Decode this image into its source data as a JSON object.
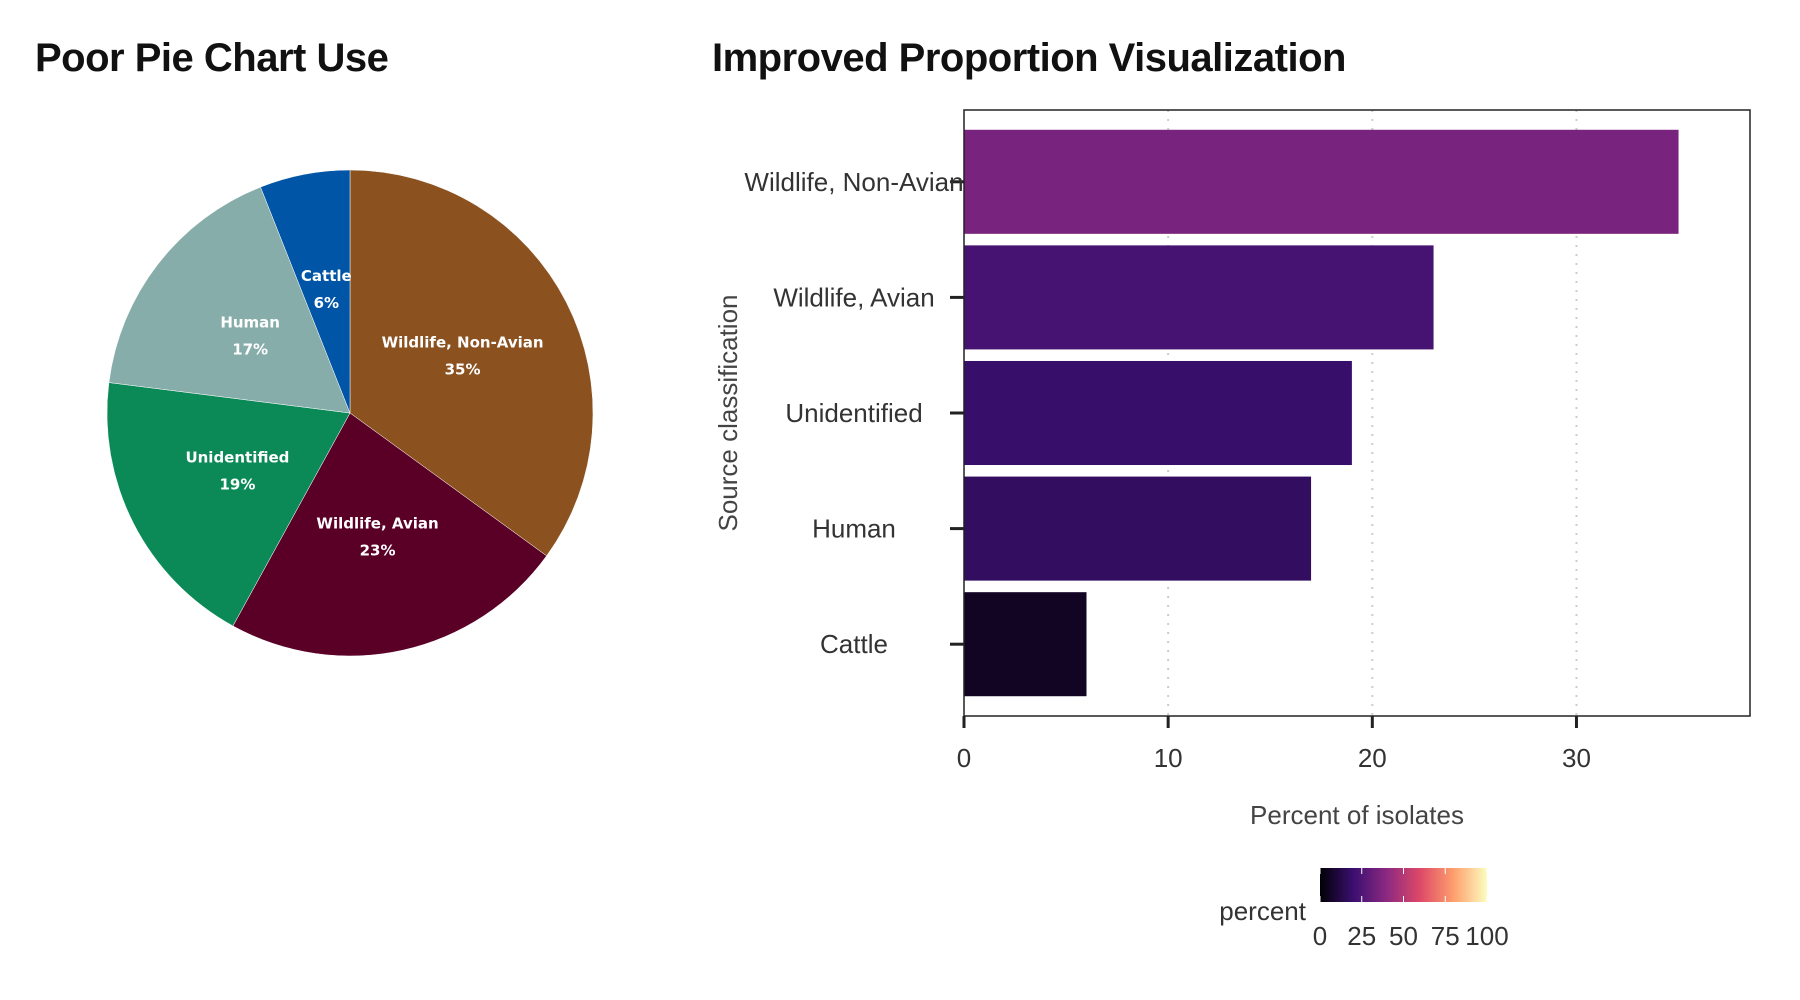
{
  "chart_data": [
    {
      "type": "pie",
      "title": "Poor Pie Chart Use",
      "start_angle_deg": 0,
      "direction": "clockwise",
      "slices": [
        {
          "label": "Wildlife, Non-Avian",
          "value": 35,
          "pct_label": "35%",
          "color": "#8B511F"
        },
        {
          "label": "Wildlife, Avian",
          "value": 23,
          "pct_label": "23%",
          "color": "#5A0027"
        },
        {
          "label": "Unidentified",
          "value": 19,
          "pct_label": "19%",
          "color": "#0B8A57"
        },
        {
          "label": "Human",
          "value": 17,
          "pct_label": "17%",
          "color": "#87ADAA"
        },
        {
          "label": "Cattle",
          "value": 6,
          "pct_label": "6%",
          "color": "#0055A6"
        }
      ]
    },
    {
      "type": "bar",
      "orientation": "horizontal",
      "title": "Improved Proportion Visualization",
      "xlabel": "Percent of isolates",
      "ylabel": "Source classification",
      "xlim": [
        0,
        38.5
      ],
      "xticks": [
        0,
        10,
        20,
        30
      ],
      "grid": "vertical dotted",
      "categories": [
        "Wildlife, Non-Avian",
        "Wildlife, Avian",
        "Unidentified",
        "Human",
        "Cattle"
      ],
      "values": [
        35,
        23,
        19,
        17,
        6
      ],
      "color_scale": {
        "name": "percent",
        "palette": "magma",
        "range": [
          0,
          100
        ],
        "ticks": [
          0,
          25,
          50,
          75,
          100
        ],
        "legend_position": "bottom",
        "stops": [
          "#000004",
          "#3B0F70",
          "#8C2981",
          "#DE4968",
          "#FE9F6D",
          "#FCFDBF"
        ]
      }
    }
  ]
}
